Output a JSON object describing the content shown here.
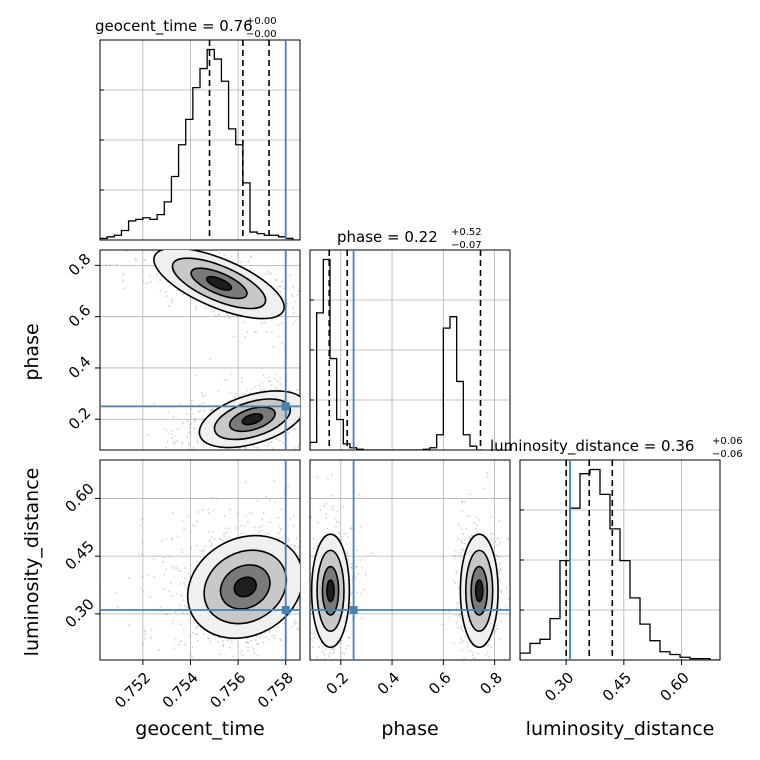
{
  "chart_data": {
    "type": "corner",
    "parameters": [
      "geocent_time",
      "phase",
      "luminosity_distance"
    ],
    "truths": {
      "geocent_time": 0.758,
      "phase": 0.25,
      "luminosity_distance": 0.31
    },
    "titles": {
      "geocent_time": {
        "label": "geocent_time = 0.76",
        "plus": "+0.00",
        "minus": "−0.00"
      },
      "phase": {
        "label": "phase = 0.22",
        "plus": "+0.52",
        "minus": "−0.07"
      },
      "luminosity_distance": {
        "label": "luminosity_distance = 0.36",
        "plus": "+0.06",
        "minus": "−0.06"
      }
    },
    "axis_labels": {
      "x": [
        "geocent_time",
        "phase",
        "luminosity_distance"
      ],
      "y": [
        "phase",
        "luminosity_distance"
      ]
    },
    "ranges": {
      "geocent_time": [
        0.7502,
        0.7586
      ],
      "phase": [
        0.08,
        0.86
      ],
      "luminosity_distance": [
        0.18,
        0.7
      ]
    },
    "ticks": {
      "geocent_time": [
        "0.752",
        "0.754",
        "0.756",
        "0.758"
      ],
      "phase": [
        "0.2",
        "0.4",
        "0.6",
        "0.8"
      ],
      "luminosity_distance": [
        "0.30",
        "0.45",
        "0.60"
      ]
    },
    "tick_values": {
      "geocent_time": [
        0.752,
        0.754,
        0.756,
        0.758
      ],
      "phase": [
        0.2,
        0.4,
        0.6,
        0.8
      ],
      "luminosity_distance": [
        0.3,
        0.45,
        0.6
      ]
    },
    "quantiles": {
      "geocent_time": [
        0.7548,
        0.7562,
        0.7573
      ],
      "phase": [
        0.155,
        0.225,
        0.745
      ],
      "luminosity_distance": [
        0.3,
        0.36,
        0.42
      ]
    },
    "histograms": {
      "geocent_time": {
        "edges_start": 0.7502,
        "edges_step": 0.0003,
        "counts": [
          1,
          2,
          3,
          6,
          12,
          13,
          14,
          13,
          16,
          24,
          40,
          60,
          76,
          96,
          108,
          120,
          114,
          100,
          70,
          60,
          36,
          5,
          4,
          3,
          3,
          2,
          1,
          0
        ]
      },
      "phase": {
        "edges_start": 0.08,
        "edges_step": 0.026,
        "counts": [
          10,
          180,
          250,
          120,
          40,
          8,
          3,
          1,
          0,
          0,
          0,
          0,
          0,
          0,
          0,
          0,
          0,
          1,
          3,
          20,
          160,
          175,
          90,
          20,
          5,
          0
        ]
      },
      "luminosity_distance": {
        "edges_start": 0.18,
        "edges_step": 0.026,
        "counts": [
          5,
          12,
          15,
          30,
          72,
          110,
          135,
          138,
          120,
          95,
          72,
          45,
          26,
          14,
          6,
          4,
          2,
          1,
          1,
          0
        ]
      }
    },
    "grid": true
  }
}
